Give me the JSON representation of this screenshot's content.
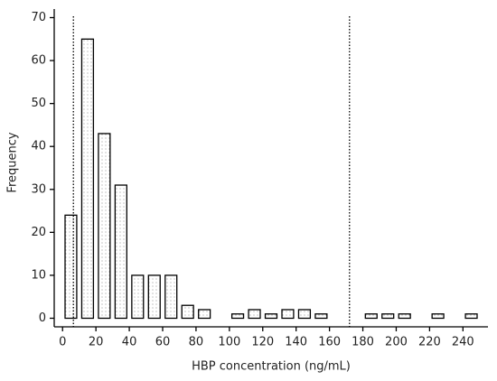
{
  "chart_data": {
    "type": "histogram",
    "x_label": "HBP concentration (ng/mL)",
    "y_label": "Frequency",
    "bins": [
      0,
      10,
      20,
      30,
      40,
      50,
      60,
      70,
      80,
      90,
      100,
      110,
      120,
      130,
      140,
      150,
      160,
      170,
      180,
      190,
      200,
      210,
      220,
      230,
      240,
      250
    ],
    "values": [
      24,
      65,
      43,
      31,
      10,
      10,
      10,
      3,
      2,
      0,
      1,
      2,
      1,
      2,
      2,
      1,
      0,
      0,
      1,
      1,
      1,
      0,
      1,
      0,
      1
    ],
    "xlim": [
      -5,
      255
    ],
    "ylim": [
      -2,
      72
    ],
    "xticks": [
      0,
      20,
      40,
      60,
      80,
      100,
      120,
      140,
      160,
      180,
      200,
      220,
      240
    ],
    "yticks": [
      0,
      10,
      20,
      30,
      40,
      50,
      60,
      70
    ],
    "reference_lines": [
      6.5,
      172
    ],
    "color": "#000000"
  }
}
